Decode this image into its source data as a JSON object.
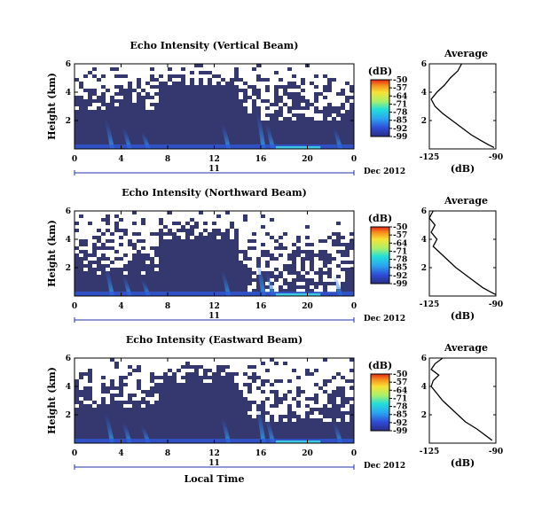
{
  "chart_data": [
    {
      "type": "heatmap",
      "title": "Echo Intensity (Vertical Beam)",
      "ylabel": "Height (km)",
      "xlabel": "",
      "x_ticks": [
        "0",
        "4",
        "8",
        "12",
        "16",
        "20",
        "0"
      ],
      "y_ticks": [
        "6",
        "4",
        "2"
      ],
      "xlim": [
        0,
        24
      ],
      "ylim": [
        0,
        6
      ],
      "day_label": "11",
      "date_label": "Dec 2012",
      "colorbar": {
        "label": "(dB)",
        "ticks": [
          "-50",
          "-57",
          "-64",
          "-71",
          "-78",
          "-85",
          "-92",
          "-99"
        ],
        "range": [
          -99,
          -50
        ]
      },
      "profile": {
        "title": "Average",
        "xlabel": "(dB)",
        "x_ticks": [
          "-125",
          "-90"
        ],
        "y_ticks": [
          "6",
          "4",
          "2"
        ],
        "xlim": [
          -125,
          -90
        ],
        "points": [
          [
            -108,
            6.0
          ],
          [
            -110,
            5.5
          ],
          [
            -114,
            5.0
          ],
          [
            -117,
            4.5
          ],
          [
            -121,
            4.0
          ],
          [
            -124,
            3.5
          ],
          [
            -122,
            3.0
          ],
          [
            -118,
            2.5
          ],
          [
            -113,
            2.0
          ],
          [
            -108,
            1.5
          ],
          [
            -103,
            1.0
          ],
          [
            -98,
            0.6
          ],
          [
            -94,
            0.3
          ],
          [
            -91,
            0.1
          ]
        ]
      },
      "gap_density": 0.55
    },
    {
      "type": "heatmap",
      "title": "Echo Intensity (Northward Beam)",
      "ylabel": "Height (km)",
      "xlabel": "",
      "x_ticks": [
        "0",
        "4",
        "8",
        "12",
        "16",
        "20",
        "0"
      ],
      "y_ticks": [
        "6",
        "4",
        "2"
      ],
      "xlim": [
        0,
        24
      ],
      "ylim": [
        0,
        6
      ],
      "day_label": "11",
      "date_label": "Dec 2012",
      "colorbar": {
        "label": "(dB)",
        "ticks": [
          "-50",
          "-57",
          "-64",
          "-71",
          "-78",
          "-85",
          "-92",
          "-99"
        ],
        "range": [
          -99,
          -50
        ]
      },
      "profile": {
        "title": "Average",
        "xlabel": "(dB)",
        "x_ticks": [
          "-125",
          "-90"
        ],
        "y_ticks": [
          "6",
          "4",
          "2"
        ],
        "xlim": [
          -125,
          -90
        ],
        "points": [
          [
            -123,
            6.0
          ],
          [
            -125,
            5.5
          ],
          [
            -122,
            5.0
          ],
          [
            -124,
            4.5
          ],
          [
            -121,
            4.0
          ],
          [
            -123,
            3.5
          ],
          [
            -119,
            3.0
          ],
          [
            -115,
            2.5
          ],
          [
            -111,
            2.0
          ],
          [
            -106,
            1.5
          ],
          [
            -101,
            1.0
          ],
          [
            -97,
            0.6
          ],
          [
            -93,
            0.3
          ],
          [
            -90,
            0.1
          ]
        ]
      },
      "gap_density": 0.78
    },
    {
      "type": "heatmap",
      "title": "Echo Intensity (Eastward Beam)",
      "ylabel": "Height (km)",
      "xlabel": "Local Time",
      "x_ticks": [
        "0",
        "4",
        "8",
        "12",
        "16",
        "20",
        "0"
      ],
      "y_ticks": [
        "6",
        "4",
        "2"
      ],
      "xlim": [
        0,
        24
      ],
      "ylim": [
        0,
        6
      ],
      "day_label": "11",
      "date_label": "Dec 2012",
      "colorbar": {
        "label": "(dB)",
        "ticks": [
          "-50",
          "-57",
          "-64",
          "-71",
          "-78",
          "-85",
          "-92",
          "-99"
        ],
        "range": [
          -99,
          -50
        ]
      },
      "profile": {
        "title": "Average",
        "xlabel": "(dB)",
        "x_ticks": [
          "-125",
          "-90"
        ],
        "y_ticks": [
          "6",
          "4",
          "2"
        ],
        "xlim": [
          -125,
          -90
        ],
        "points": [
          [
            -118,
            6.0
          ],
          [
            -122,
            5.6
          ],
          [
            -124,
            5.2
          ],
          [
            -120,
            4.8
          ],
          [
            -123,
            4.4
          ],
          [
            -124,
            4.0
          ],
          [
            -121,
            3.5
          ],
          [
            -118,
            3.0
          ],
          [
            -114,
            2.5
          ],
          [
            -110,
            2.0
          ],
          [
            -106,
            1.5
          ],
          [
            -100,
            1.0
          ],
          [
            -96,
            0.6
          ],
          [
            -92,
            0.2
          ]
        ]
      },
      "gap_density": 0.62
    }
  ],
  "colors": {
    "background": "#34386e",
    "gap": "#ffffff",
    "axis": "#000000",
    "day_line": "#2233aa"
  }
}
